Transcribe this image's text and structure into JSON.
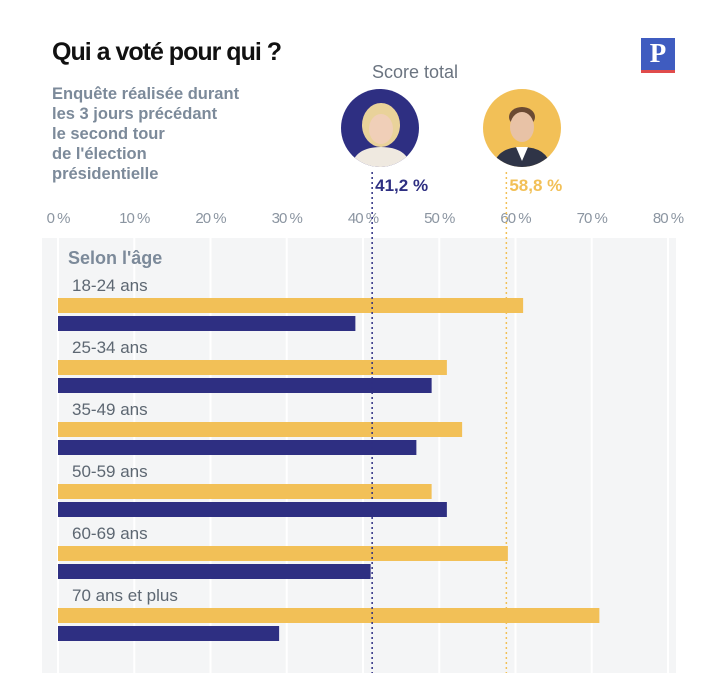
{
  "header": {
    "title": "Qui a voté pour qui ?",
    "subtitle_lines": [
      "Enquête réalisée durant",
      "les 3 jours précédant",
      "le second tour",
      "de l'élection",
      "présidentielle"
    ],
    "logo_letter": "P",
    "score_total_label": "Score total",
    "brand_color": "#3f5cc0"
  },
  "chart_data": {
    "type": "bar",
    "orientation": "horizontal",
    "group_label": "Selon l'âge",
    "categories": [
      "18-24 ans",
      "25-34 ans",
      "35-49 ans",
      "50-59 ans",
      "60-69 ans",
      "70 ans et plus"
    ],
    "series": [
      {
        "color": "#f2c057",
        "values": [
          61,
          51,
          53,
          49,
          59,
          71
        ]
      },
      {
        "color": "#2e2f82",
        "values": [
          39,
          49,
          47,
          51,
          41,
          29
        ]
      }
    ],
    "xlim": [
      0,
      80
    ],
    "x_ticks": [
      "0 %",
      "10 %",
      "20 %",
      "30 %",
      "40 %",
      "50 %",
      "60 %",
      "70 %",
      "80 %"
    ],
    "grid": true,
    "reference_lines": [
      {
        "value": 41.2,
        "label": "41,2 %",
        "color": "#2e2f82"
      },
      {
        "value": 58.8,
        "label": "58,8 %",
        "color": "#f2c057"
      }
    ]
  }
}
